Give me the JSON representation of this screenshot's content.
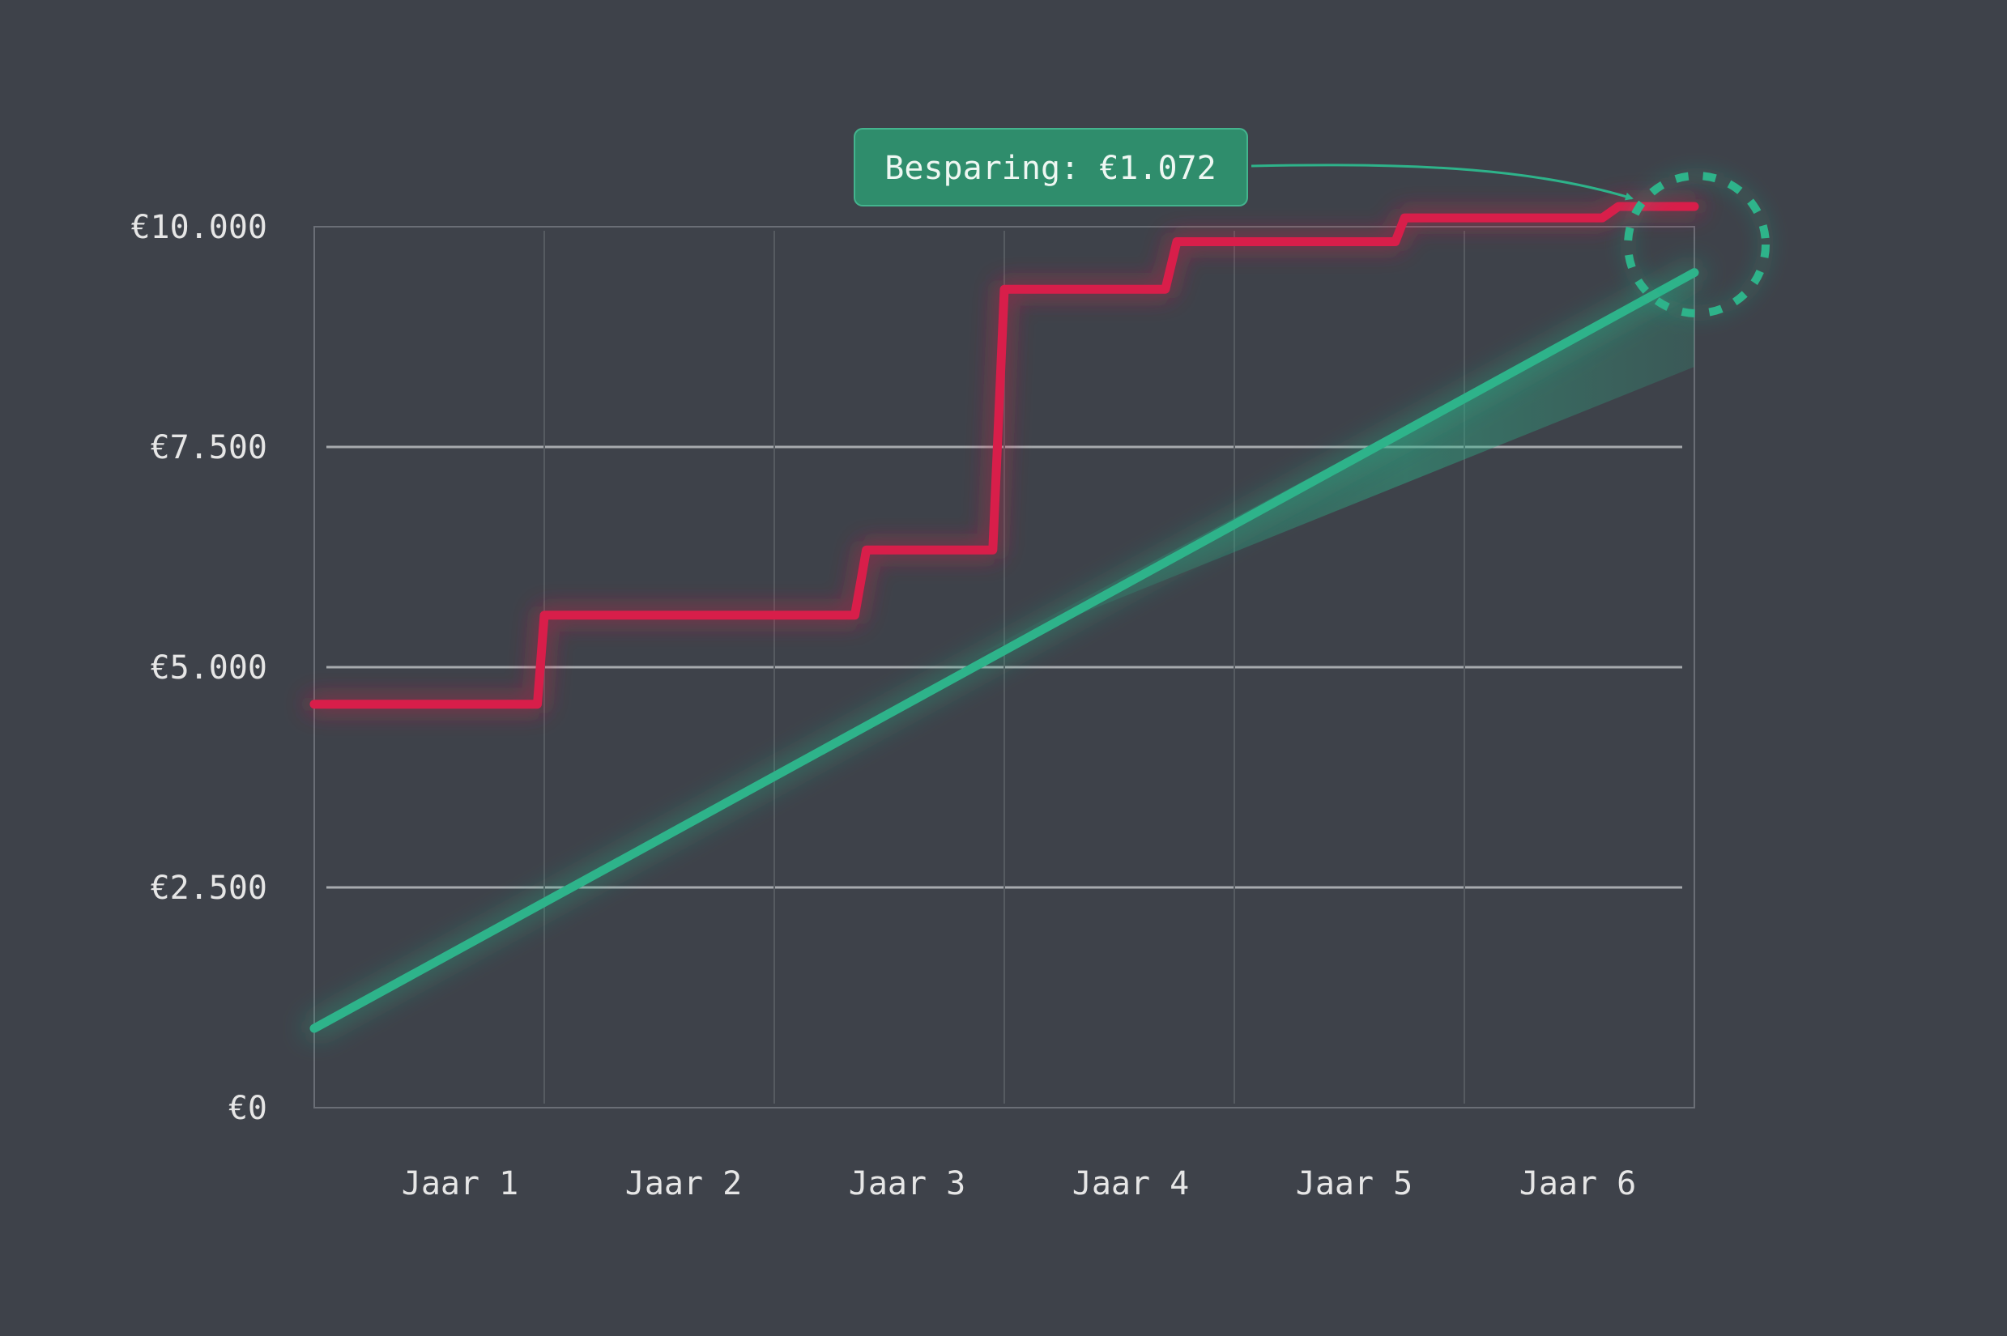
{
  "chart_data": {
    "type": "line",
    "title": "",
    "xlabel": "",
    "ylabel": "",
    "x_tick_labels": [
      "Jaar 1",
      "Jaar 2",
      "Jaar 3",
      "Jaar 4",
      "Jaar 5",
      "Jaar 6"
    ],
    "y_tick_labels": [
      "€0",
      "€2.500",
      "€5.000",
      "€7.500",
      "€10.000"
    ],
    "y_ticks": [
      0,
      2500,
      5000,
      7500,
      10000
    ],
    "xlim": [
      0,
      6
    ],
    "ylim": [
      0,
      10000
    ],
    "grid": true,
    "series": [
      {
        "color": "#d81e4a",
        "step": true,
        "points": [
          [
            0,
            4580
          ],
          [
            0.97,
            4580
          ],
          [
            1.0,
            5590
          ],
          [
            2.35,
            5590
          ],
          [
            2.4,
            6330
          ],
          [
            2.95,
            6330
          ],
          [
            3.0,
            9290
          ],
          [
            3.7,
            9290
          ],
          [
            3.75,
            9830
          ],
          [
            4.7,
            9830
          ],
          [
            4.74,
            10100
          ],
          [
            5.6,
            10100
          ],
          [
            5.67,
            10230
          ],
          [
            6.0,
            10230
          ]
        ]
      },
      {
        "color": "#2eb38a",
        "step": false,
        "points": [
          [
            0,
            900
          ],
          [
            6.0,
            9480
          ]
        ],
        "band": [
          [
            2.87,
            5120
          ],
          [
            6.0,
            9480
          ],
          [
            6.0,
            8410
          ]
        ]
      }
    ],
    "annotation": {
      "text": "Besparing: €1.072",
      "box_color": "#2f8d6c",
      "arrow_color": "#2eb38a"
    }
  }
}
